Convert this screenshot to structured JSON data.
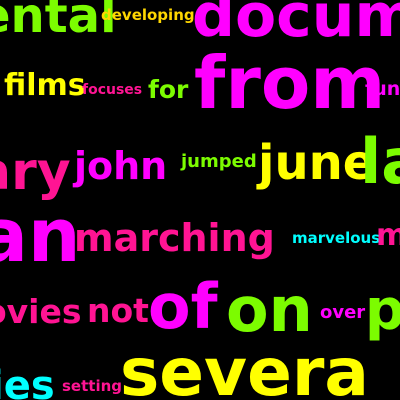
{
  "words": [
    {
      "id": "w0",
      "text": "ental",
      "color": "#7CFC00"
    },
    {
      "id": "w1",
      "text": "developing",
      "color": "#FFD700"
    },
    {
      "id": "w2",
      "text": "documen",
      "color": "#FF00FF"
    },
    {
      "id": "w3",
      "text": "films",
      "color": "#FFFF00"
    },
    {
      "id": "w4",
      "text": "focuses",
      "color": "#FF1493"
    },
    {
      "id": "w5",
      "text": "for",
      "color": "#7CFC00"
    },
    {
      "id": "w6",
      "text": "from",
      "color": "#FF00FF"
    },
    {
      "id": "w7",
      "text": "fun",
      "color": "#FF00FF"
    },
    {
      "id": "w8",
      "text": "ary",
      "color": "#FF1493"
    },
    {
      "id": "w9",
      "text": "john",
      "color": "#FF00FF"
    },
    {
      "id": "w10",
      "text": "jumped",
      "color": "#7CFC00"
    },
    {
      "id": "w11",
      "text": "june",
      "color": "#FFFF00"
    },
    {
      "id": "w12",
      "text": "la",
      "color": "#7CFC00"
    },
    {
      "id": "w13",
      "text": "an",
      "color": "#FF00FF"
    },
    {
      "id": "w14",
      "text": "marching",
      "color": "#FF1493"
    },
    {
      "id": "w15",
      "text": "marvelous",
      "color": "#00FFFF"
    },
    {
      "id": "w16",
      "text": "m",
      "color": "#FF1493"
    },
    {
      "id": "w17",
      "text": "ovies",
      "color": "#FF1493"
    },
    {
      "id": "w18",
      "text": "not",
      "color": "#FF1493"
    },
    {
      "id": "w19",
      "text": "of",
      "color": "#FF00FF"
    },
    {
      "id": "w20",
      "text": "on",
      "color": "#7CFC00"
    },
    {
      "id": "w21",
      "text": "over",
      "color": "#FF00FF"
    },
    {
      "id": "w22",
      "text": "p",
      "color": "#7CFC00"
    },
    {
      "id": "w23",
      "text": "ies",
      "color": "#00FFFF"
    },
    {
      "id": "w24",
      "text": "setting",
      "color": "#FF1493"
    },
    {
      "id": "w25",
      "text": "severa",
      "color": "#FFFF00"
    }
  ]
}
